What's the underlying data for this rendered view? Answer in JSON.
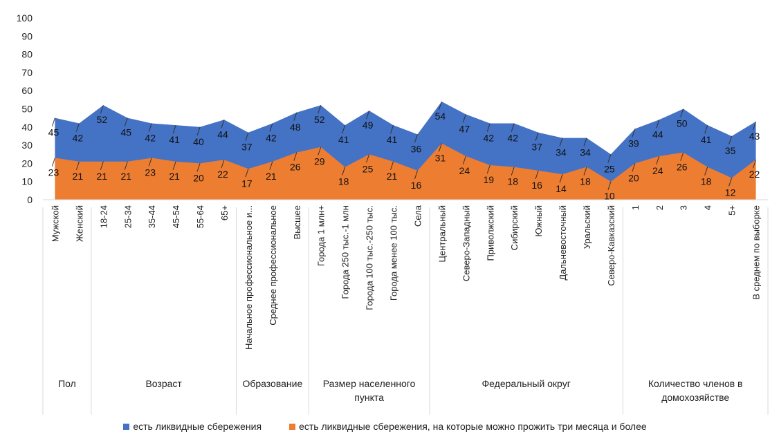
{
  "colors": {
    "series1": "#4472C4",
    "series2": "#ED7D31",
    "grid": "#d9d9d9"
  },
  "chart_data": {
    "type": "area",
    "title": "",
    "xlabel": "",
    "ylabel": "",
    "ylim": [
      0,
      100
    ],
    "yticks": [
      0,
      10,
      20,
      30,
      40,
      50,
      60,
      70,
      80,
      90,
      100
    ],
    "categories": [
      "Мужской",
      "Женский",
      "18-24",
      "25-34",
      "35-44",
      "45-54",
      "55-64",
      "65+",
      "Начальное профессиональное и...",
      "Среднее профессиональное",
      "Высшее",
      "Города 1 млн+",
      "Города 250 тыс.-1 млн",
      "Города 100 тыс.-250 тыс.",
      "Города менее 100 тыс.",
      "Села",
      "Центральный",
      "Северо-Западный",
      "Приволжский",
      "Сибирский",
      "Южный",
      "Дальневосточный",
      "Уральский",
      "Северо-Кавказский",
      "1",
      "2",
      "3",
      "4",
      "5+",
      "В среднем по выборке"
    ],
    "groups": [
      {
        "label": "Пол",
        "count": 2
      },
      {
        "label": "Возраст",
        "count": 6
      },
      {
        "label": "Образование",
        "count": 3
      },
      {
        "label": "Размер населенного пункта",
        "count": 5
      },
      {
        "label": "Федеральный округ",
        "count": 8
      },
      {
        "label": "Количество членов в домохозяйстве",
        "count": 6
      }
    ],
    "series": [
      {
        "name": "есть ликвидные сбережения",
        "values": [
          45,
          42,
          52,
          45,
          42,
          41,
          40,
          44,
          37,
          42,
          48,
          52,
          41,
          49,
          41,
          36,
          54,
          47,
          42,
          42,
          37,
          34,
          34,
          25,
          39,
          44,
          50,
          41,
          35,
          43
        ]
      },
      {
        "name": "есть ликвидные сбережения, на которые можно прожить три месяца и более",
        "values": [
          23,
          21,
          21,
          21,
          23,
          21,
          20,
          22,
          17,
          21,
          26,
          29,
          18,
          25,
          21,
          16,
          31,
          24,
          19,
          18,
          16,
          14,
          18,
          10,
          20,
          24,
          26,
          18,
          12,
          22
        ]
      }
    ],
    "legend_position": "bottom",
    "grid": false
  }
}
